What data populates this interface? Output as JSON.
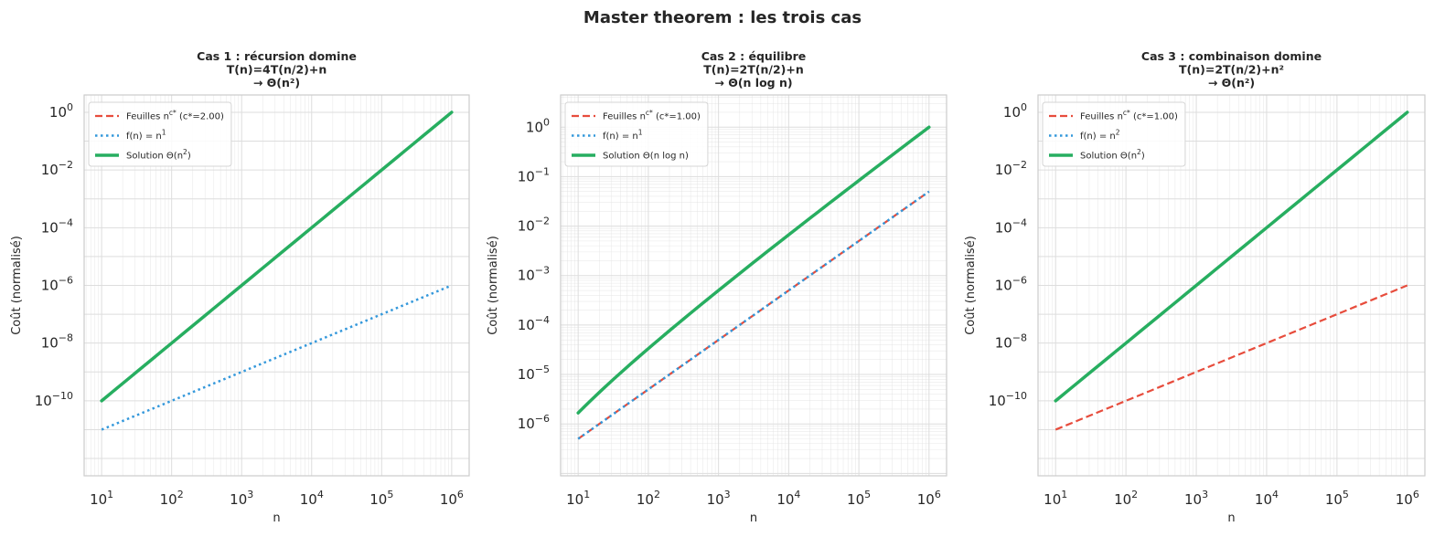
{
  "suptitle": "Master theorem : les trois cas",
  "colors": {
    "leaves": "#e74c3c",
    "fn": "#3498db",
    "solution": "#27ae60",
    "grid": "#dddddd",
    "spine": "#cccccc"
  },
  "chart_data": [
    {
      "type": "line",
      "title_lines": [
        "Cas 1 : récursion domine",
        "T(n)=4T(n/2)+n",
        "→ Θ(n²)"
      ],
      "xlabel": "n",
      "ylabel": "Coût (normalisé)",
      "xscale": "log",
      "yscale": "log",
      "xlim": [
        10,
        1000000
      ],
      "ylim": [
        1e-12,
        1
      ],
      "xticks": [
        1,
        2,
        3,
        4,
        5,
        6
      ],
      "yticks": [
        -10,
        -8,
        -6,
        -4,
        -2,
        0
      ],
      "grid": true,
      "minor_grid": "x",
      "legend_position": "upper-left",
      "series": [
        {
          "name": "Feuilles n^{c*} (c*=2.00)",
          "legend_base": "Feuilles n",
          "legend_sup": "c*",
          "legend_rest": " (c*=2.00)",
          "role": "leaves",
          "style": "dashed",
          "x": [
            10,
            1000000
          ],
          "y": [
            1e-10,
            1
          ],
          "interp": "power"
        },
        {
          "name": "f(n) = n^1",
          "legend_base": "f(n) = n",
          "legend_sup": "1",
          "legend_rest": "",
          "role": "fn",
          "style": "dotted",
          "x": [
            10,
            1000000
          ],
          "y": [
            1e-11,
            1e-06
          ],
          "interp": "power"
        },
        {
          "name": "Solution Θ(n^2)",
          "legend_base": "Solution Θ(n",
          "legend_sup": "2",
          "legend_rest": ")",
          "role": "solution",
          "style": "solid",
          "x": [
            10,
            1000000
          ],
          "y": [
            1e-10,
            1
          ],
          "interp": "power"
        }
      ]
    },
    {
      "type": "line",
      "title_lines": [
        "Cas 2 : équilibre",
        "T(n)=2T(n/2)+n",
        "→ Θ(n log n)"
      ],
      "xlabel": "n",
      "ylabel": "Coût (normalisé)",
      "xscale": "log",
      "yscale": "log",
      "xlim": [
        10,
        1000000
      ],
      "ylim": [
        2e-07,
        2
      ],
      "xticks": [
        1,
        2,
        3,
        4,
        5,
        6
      ],
      "yticks": [
        -6,
        -5,
        -4,
        -3,
        -2,
        -1,
        0
      ],
      "grid": true,
      "minor_grid": "both",
      "legend_position": "upper-left",
      "series": [
        {
          "name": "Feuilles n^{c*} (c*=1.00)",
          "legend_base": "Feuilles n",
          "legend_sup": "c*",
          "legend_rest": " (c*=1.00)",
          "role": "leaves",
          "style": "dashed",
          "x": [
            10,
            1000000
          ],
          "y": [
            5e-07,
            0.05
          ],
          "interp": "power"
        },
        {
          "name": "f(n) = n^1",
          "legend_base": "f(n) = n",
          "legend_sup": "1",
          "legend_rest": "",
          "role": "fn",
          "style": "dotted",
          "x": [
            10,
            1000000
          ],
          "y": [
            5e-07,
            0.05
          ],
          "interp": "power"
        },
        {
          "name": "Solution Θ(n log n)",
          "legend_base": "Solution Θ(n log n)",
          "legend_sup": "",
          "legend_rest": "",
          "role": "solution",
          "style": "solid",
          "x": [
            10,
            1000000
          ],
          "y": [
            1.67e-06,
            1
          ],
          "interp": "nlogn"
        }
      ]
    },
    {
      "type": "line",
      "title_lines": [
        "Cas 3 : combinaison domine",
        "T(n)=2T(n/2)+n²",
        "→ Θ(n²)"
      ],
      "xlabel": "n",
      "ylabel": "Coût (normalisé)",
      "xscale": "log",
      "yscale": "log",
      "xlim": [
        10,
        1000000
      ],
      "ylim": [
        1e-12,
        1
      ],
      "xticks": [
        1,
        2,
        3,
        4,
        5,
        6
      ],
      "yticks": [
        -10,
        -8,
        -6,
        -4,
        -2,
        0
      ],
      "grid": true,
      "minor_grid": "x",
      "legend_position": "upper-left",
      "series": [
        {
          "name": "Feuilles n^{c*} (c*=1.00)",
          "legend_base": "Feuilles n",
          "legend_sup": "c*",
          "legend_rest": " (c*=1.00)",
          "role": "leaves",
          "style": "dashed",
          "x": [
            10,
            1000000
          ],
          "y": [
            1e-11,
            1e-06
          ],
          "interp": "power"
        },
        {
          "name": "f(n) = n^2",
          "legend_base": "f(n) = n",
          "legend_sup": "2",
          "legend_rest": "",
          "role": "fn",
          "style": "dotted",
          "x": [
            10,
            1000000
          ],
          "y": [
            1e-10,
            1
          ],
          "interp": "power"
        },
        {
          "name": "Solution Θ(n^2)",
          "legend_base": "Solution Θ(n",
          "legend_sup": "2",
          "legend_rest": ")",
          "role": "solution",
          "style": "solid",
          "x": [
            10,
            1000000
          ],
          "y": [
            1e-10,
            1
          ],
          "interp": "power"
        }
      ]
    }
  ]
}
